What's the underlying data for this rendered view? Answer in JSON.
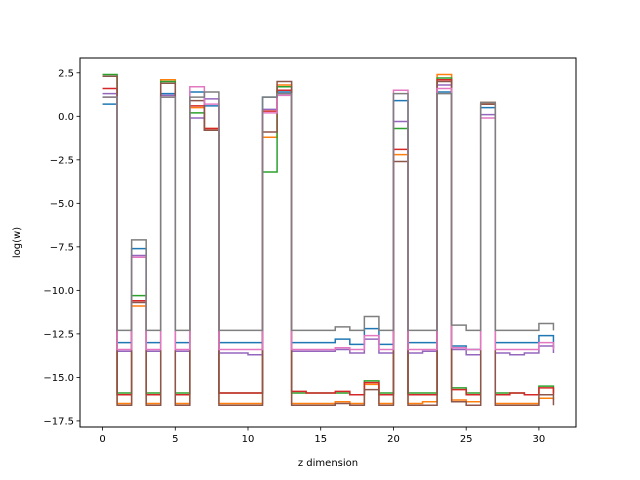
{
  "chart_data": {
    "type": "line",
    "step": "post",
    "title": "",
    "xlabel": "z dimension",
    "ylabel": "log(w)",
    "xlim": [
      -1.55,
      32.55
    ],
    "ylim": [
      -17.85,
      3.35
    ],
    "xticks": [
      0,
      5,
      10,
      15,
      20,
      25,
      30
    ],
    "xtick_labels": [
      "0",
      "5",
      "10",
      "15",
      "20",
      "25",
      "30"
    ],
    "yticks": [
      2.5,
      0.0,
      -2.5,
      -5.0,
      -7.5,
      -10.0,
      -12.5,
      -15.0,
      -17.5
    ],
    "ytick_labels": [
      "2.5",
      "0.0",
      "−2.5",
      "−5.0",
      "−7.5",
      "−10.0",
      "−12.5",
      "−15.0",
      "−17.5"
    ],
    "grid": false,
    "legend": "none",
    "x": [
      0,
      1,
      2,
      3,
      4,
      5,
      6,
      7,
      8,
      9,
      10,
      11,
      12,
      13,
      14,
      15,
      16,
      17,
      18,
      19,
      20,
      21,
      22,
      23,
      24,
      25,
      26,
      27,
      28,
      29,
      30,
      31
    ],
    "series": [
      {
        "color": "#1f77b4",
        "values": [
          0.7,
          -13.0,
          -7.6,
          -13.0,
          1.3,
          -13.0,
          1.4,
          0.6,
          -13.0,
          -13.0,
          -13.0,
          1.1,
          1.4,
          -13.0,
          -13.0,
          -13.0,
          -12.8,
          -13.1,
          -12.2,
          -13.1,
          0.9,
          -13.0,
          -13.0,
          1.4,
          -13.2,
          -13.4,
          0.5,
          -13.0,
          -13.0,
          -13.0,
          -12.6,
          -13.3
        ]
      },
      {
        "color": "#ff7f0e",
        "values": [
          2.3,
          -16.5,
          -10.9,
          -16.5,
          2.1,
          -16.5,
          0.5,
          -0.7,
          -16.5,
          -16.5,
          -16.5,
          -1.2,
          1.8,
          -16.5,
          -16.5,
          -16.5,
          -16.4,
          -16.5,
          -15.4,
          -16.5,
          -2.2,
          -16.5,
          -16.4,
          2.4,
          -16.3,
          -16.4,
          0.8,
          -16.5,
          -16.5,
          -16.5,
          -16.2,
          -16.3
        ]
      },
      {
        "color": "#2ca02c",
        "values": [
          2.4,
          -15.9,
          -10.3,
          -15.9,
          2.0,
          -15.9,
          0.2,
          -0.8,
          -15.9,
          -15.9,
          -15.9,
          -3.2,
          1.7,
          -15.9,
          -15.9,
          -15.9,
          -15.9,
          -16.0,
          -15.2,
          -15.9,
          -0.7,
          -15.9,
          -15.9,
          2.2,
          -15.6,
          -15.9,
          0.7,
          -15.9,
          -15.9,
          -16.0,
          -15.5,
          -15.9
        ]
      },
      {
        "color": "#d62728",
        "values": [
          1.6,
          -16.0,
          -10.6,
          -16.0,
          1.9,
          -16.0,
          0.6,
          -0.7,
          -15.9,
          -15.9,
          -15.9,
          0.3,
          1.5,
          -15.8,
          -15.9,
          -15.9,
          -15.8,
          -16.0,
          -15.3,
          -16.0,
          -1.9,
          -16.0,
          -16.0,
          2.1,
          -15.7,
          -16.0,
          0.7,
          -16.0,
          -15.9,
          -16.0,
          -15.6,
          -16.0
        ]
      },
      {
        "color": "#9467bd",
        "values": [
          1.3,
          -13.5,
          -8.0,
          -13.5,
          1.2,
          -13.5,
          -0.1,
          1.0,
          -13.6,
          -13.6,
          -13.7,
          0.4,
          1.3,
          -13.5,
          -13.5,
          -13.5,
          -13.4,
          -13.6,
          -12.8,
          -13.6,
          -0.3,
          -13.6,
          -13.5,
          1.8,
          -13.4,
          -13.7,
          0.1,
          -13.6,
          -13.7,
          -13.6,
          -13.2,
          -13.6
        ]
      },
      {
        "color": "#8c564b",
        "values": [
          2.3,
          -16.6,
          -10.7,
          -16.6,
          1.9,
          -16.6,
          0.9,
          -0.8,
          -16.6,
          -16.6,
          -16.6,
          -0.9,
          2.0,
          -16.6,
          -16.6,
          -16.6,
          -16.5,
          -16.6,
          -15.7,
          -16.6,
          -2.6,
          -16.6,
          -16.6,
          2.0,
          -16.4,
          -16.6,
          0.7,
          -16.6,
          -16.6,
          -16.6,
          -16.0,
          -16.6
        ]
      },
      {
        "color": "#e377c2",
        "values": [
          1.1,
          -13.4,
          -8.1,
          -13.4,
          1.1,
          -13.4,
          1.7,
          0.7,
          -13.4,
          -13.4,
          -13.4,
          0.2,
          1.2,
          -13.4,
          -13.4,
          -13.4,
          -13.3,
          -13.4,
          -12.6,
          -13.4,
          1.5,
          -13.4,
          -13.4,
          1.6,
          -13.3,
          -13.4,
          -0.1,
          -13.4,
          -13.4,
          -13.4,
          -13.0,
          -13.4
        ]
      },
      {
        "color": "#7f7f7f",
        "values": [
          1.1,
          -12.3,
          -7.1,
          -12.3,
          1.1,
          -12.3,
          1.1,
          1.4,
          -12.3,
          -12.3,
          -12.3,
          1.1,
          1.3,
          -12.3,
          -12.3,
          -12.3,
          -12.1,
          -12.3,
          -11.5,
          -12.3,
          1.3,
          -12.3,
          -12.3,
          1.3,
          -12.0,
          -12.3,
          0.8,
          -12.3,
          -12.3,
          -12.3,
          -11.9,
          -12.3
        ]
      }
    ]
  }
}
